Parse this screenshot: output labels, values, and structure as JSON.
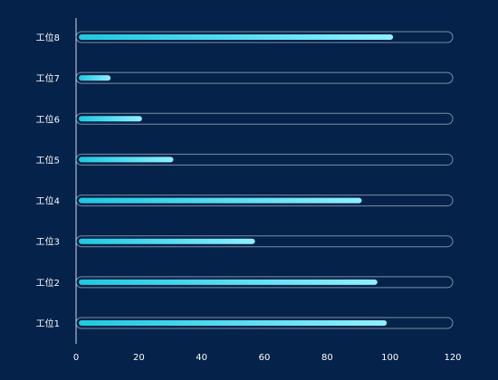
{
  "chart_data": {
    "type": "bar",
    "orientation": "horizontal",
    "categories": [
      "工位1",
      "工位2",
      "工位3",
      "工位4",
      "工位5",
      "工位6",
      "工位7",
      "工位8"
    ],
    "values": [
      99,
      96,
      57,
      91,
      31,
      21,
      11,
      101
    ],
    "xlim": [
      0,
      120
    ],
    "x_ticks": [
      0,
      20,
      40,
      60,
      80,
      100,
      120
    ],
    "title": "",
    "xlabel": "",
    "ylabel": "",
    "grid": false,
    "colors": {
      "background": "#04224a",
      "bar_start": "#1fc8e0",
      "bar_end": "#8ff0ff",
      "track_border": "#7d8ea6",
      "axis": "#cfd8e3",
      "text": "#ffffff"
    }
  }
}
